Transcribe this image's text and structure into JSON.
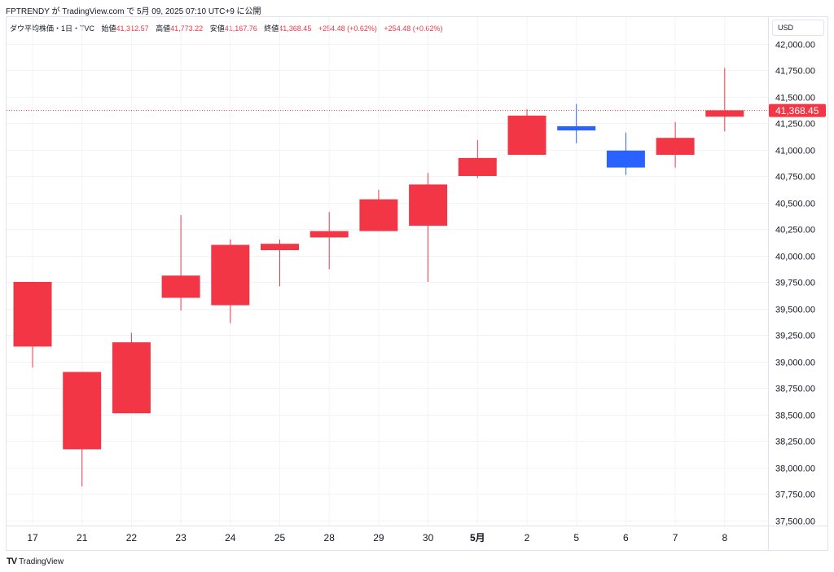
{
  "header": {
    "published_by": "FPTRENDY が TradingView.com で 5月 09, 2025 07:10 UTC+9 に公開"
  },
  "legend": {
    "symbol": "ダウ平均株価・1日・TVC",
    "open_label": "始値",
    "open_value": "41,312.57",
    "high_label": "高値",
    "high_value": "41,773.22",
    "low_label": "安値",
    "low_value": "41,167.76",
    "close_label": "終値",
    "close_value": "41,368.45",
    "change": "+254.48 (+0.62%)",
    "change2": "+254.48 (+0.62%)"
  },
  "currency": "USD",
  "last_price_label": "41,368.45",
  "colors": {
    "up": "#f23645",
    "down": "#2962ff",
    "grid": "#f0f3fa",
    "text": "#131722"
  },
  "branding": {
    "logo": "TV",
    "name": "TradingView"
  },
  "chart_data": {
    "type": "candlestick",
    "ylim": [
      37500,
      42000
    ],
    "y_ticks": [
      "37,500.00",
      "37,750.00",
      "38,000.00",
      "38,250.00",
      "38,500.00",
      "38,750.00",
      "39,000.00",
      "39,250.00",
      "39,500.00",
      "39,750.00",
      "40,000.00",
      "40,250.00",
      "40,500.00",
      "40,750.00",
      "41,000.00",
      "41,250.00",
      "41,500.00",
      "41,750.00",
      "42,000.00"
    ],
    "last_price": 41368.45,
    "candles": [
      {
        "x": "17",
        "open": 39140,
        "high": 39750,
        "low": 38940,
        "close": 39750
      },
      {
        "x": "21",
        "open": 38170,
        "high": 38900,
        "low": 37820,
        "close": 38900
      },
      {
        "x": "22",
        "open": 38510,
        "high": 39270,
        "low": 38510,
        "close": 39180
      },
      {
        "x": "23",
        "open": 39600,
        "high": 40380,
        "low": 39480,
        "close": 39810
      },
      {
        "x": "24",
        "open": 39530,
        "high": 40150,
        "low": 39360,
        "close": 40100
      },
      {
        "x": "25",
        "open": 40050,
        "high": 40150,
        "low": 39710,
        "close": 40110
      },
      {
        "x": "28",
        "open": 40170,
        "high": 40410,
        "low": 39870,
        "close": 40230
      },
      {
        "x": "29",
        "open": 40230,
        "high": 40620,
        "low": 40230,
        "close": 40530
      },
      {
        "x": "30",
        "open": 40280,
        "high": 40780,
        "low": 39750,
        "close": 40670
      },
      {
        "x": "5月",
        "open": 40750,
        "high": 41090,
        "low": 40730,
        "close": 40920
      },
      {
        "x": "2",
        "open": 40950,
        "high": 41380,
        "low": 40950,
        "close": 41320
      },
      {
        "x": "5",
        "open": 41220,
        "high": 41430,
        "low": 41060,
        "close": 41180
      },
      {
        "x": "6",
        "open": 40990,
        "high": 41160,
        "low": 40760,
        "close": 40830
      },
      {
        "x": "7",
        "open": 40950,
        "high": 41260,
        "low": 40830,
        "close": 41110
      },
      {
        "x": "8",
        "open": 41310,
        "high": 41770,
        "low": 41170,
        "close": 41370
      }
    ]
  }
}
